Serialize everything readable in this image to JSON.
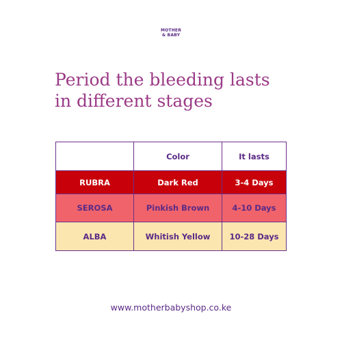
{
  "brand": {
    "line1": "MOTHER",
    "line2": "& BABY"
  },
  "title": {
    "line1": "Period the bleeding lasts",
    "line2": "in different stages"
  },
  "table": {
    "headers": [
      "",
      "Color",
      "It lasts"
    ],
    "rows": [
      {
        "stage": "RUBRA",
        "color": "Dark Red",
        "duration": "3-4 Days",
        "bg": "#c8000a",
        "fg": "#ffffff"
      },
      {
        "stage": "SEROSA",
        "color": "Pinkish Brown",
        "duration": "4-10 Days",
        "bg": "#f0636b",
        "fg": "#5b2a86"
      },
      {
        "stage": "ALBA",
        "color": "Whitish Yellow",
        "duration": "10-28 Days",
        "bg": "#fbe6b0",
        "fg": "#5b2a86"
      }
    ]
  },
  "footer": {
    "url": "www.motherbabyshop.co.ke"
  }
}
